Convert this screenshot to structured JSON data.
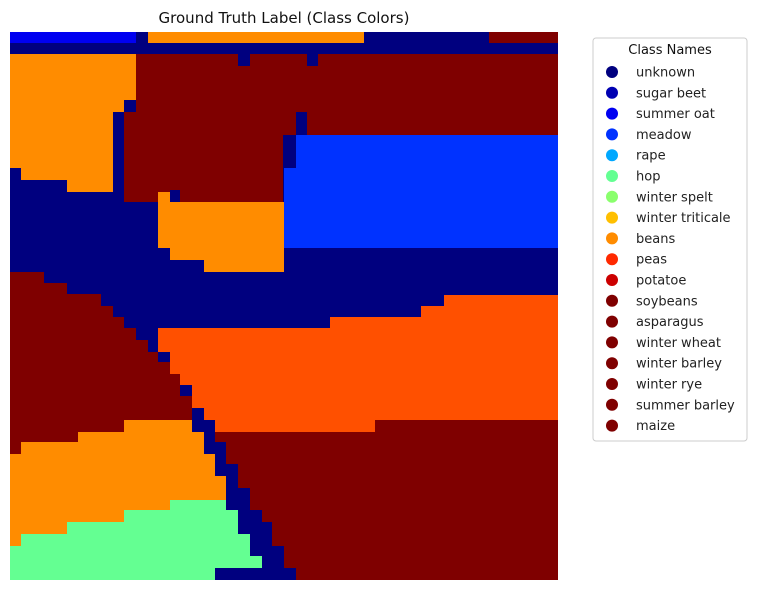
{
  "chart_data": {
    "type": "heatmap",
    "title": "Ground Truth Label (Class Colors)",
    "axes": "off",
    "legend": {
      "title": "Class Names",
      "placement": "right",
      "entries": [
        {
          "name": "unknown",
          "color": "#00007f"
        },
        {
          "name": "sugar beet",
          "color": "#0000b2"
        },
        {
          "name": "summer oat",
          "color": "#0000f1"
        },
        {
          "name": "meadow",
          "color": "#0032ff"
        },
        {
          "name": "rape",
          "color": "#00a8ff"
        },
        {
          "name": "hop",
          "color": "#64ff92"
        },
        {
          "name": "winter spelt",
          "color": "#8aff6d"
        },
        {
          "name": "winter triticale",
          "color": "#ffbf00"
        },
        {
          "name": "beans",
          "color": "#ff8c00"
        },
        {
          "name": "peas",
          "color": "#ff2900"
        },
        {
          "name": "potatoe",
          "color": "#cc0000"
        },
        {
          "name": "soybeans",
          "color": "#7f0000"
        },
        {
          "name": "asparagus",
          "color": "#7f0000"
        },
        {
          "name": "winter wheat",
          "color": "#7f0000"
        },
        {
          "name": "winter barley",
          "color": "#7f0000"
        },
        {
          "name": "winter rye",
          "color": "#7f0000"
        },
        {
          "name": "summer barley",
          "color": "#7f0000"
        },
        {
          "name": "maize",
          "color": "#7f0000"
        }
      ]
    },
    "image_colors": {
      "unknown": "#00007f",
      "summer_oat": "#0000f1",
      "meadow": "#0032ff",
      "beans": "#ff8c00",
      "peas_area": "#ff5000",
      "hop": "#64ff92",
      "maroon": "#7f0000"
    }
  }
}
